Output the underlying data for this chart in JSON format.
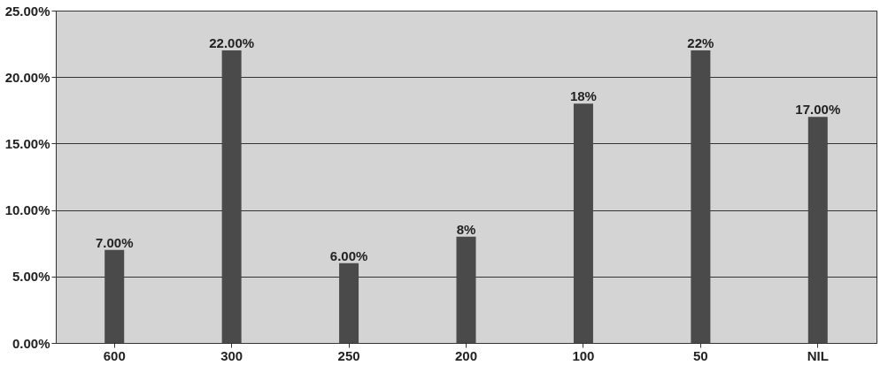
{
  "chart_data": {
    "type": "bar",
    "categories": [
      "600",
      "300",
      "250",
      "200",
      "100",
      "50",
      "NIL"
    ],
    "values": [
      7,
      22,
      6,
      8,
      18,
      22,
      17
    ],
    "value_labels": [
      "7.00%",
      "22.00%",
      "6.00%",
      "8%",
      "18%",
      "22%",
      "17.00%"
    ],
    "color": "#4a4a4a",
    "ylim": [
      0,
      25
    ],
    "yticks": [
      {
        "value": 0,
        "label": "0.00%"
      },
      {
        "value": 5,
        "label": "5.00%"
      },
      {
        "value": 10,
        "label": "10.00%"
      },
      {
        "value": 15,
        "label": "15.00%"
      },
      {
        "value": 20,
        "label": "20.00%"
      },
      {
        "value": 25,
        "label": "25.00%"
      }
    ],
    "grid": "y"
  }
}
